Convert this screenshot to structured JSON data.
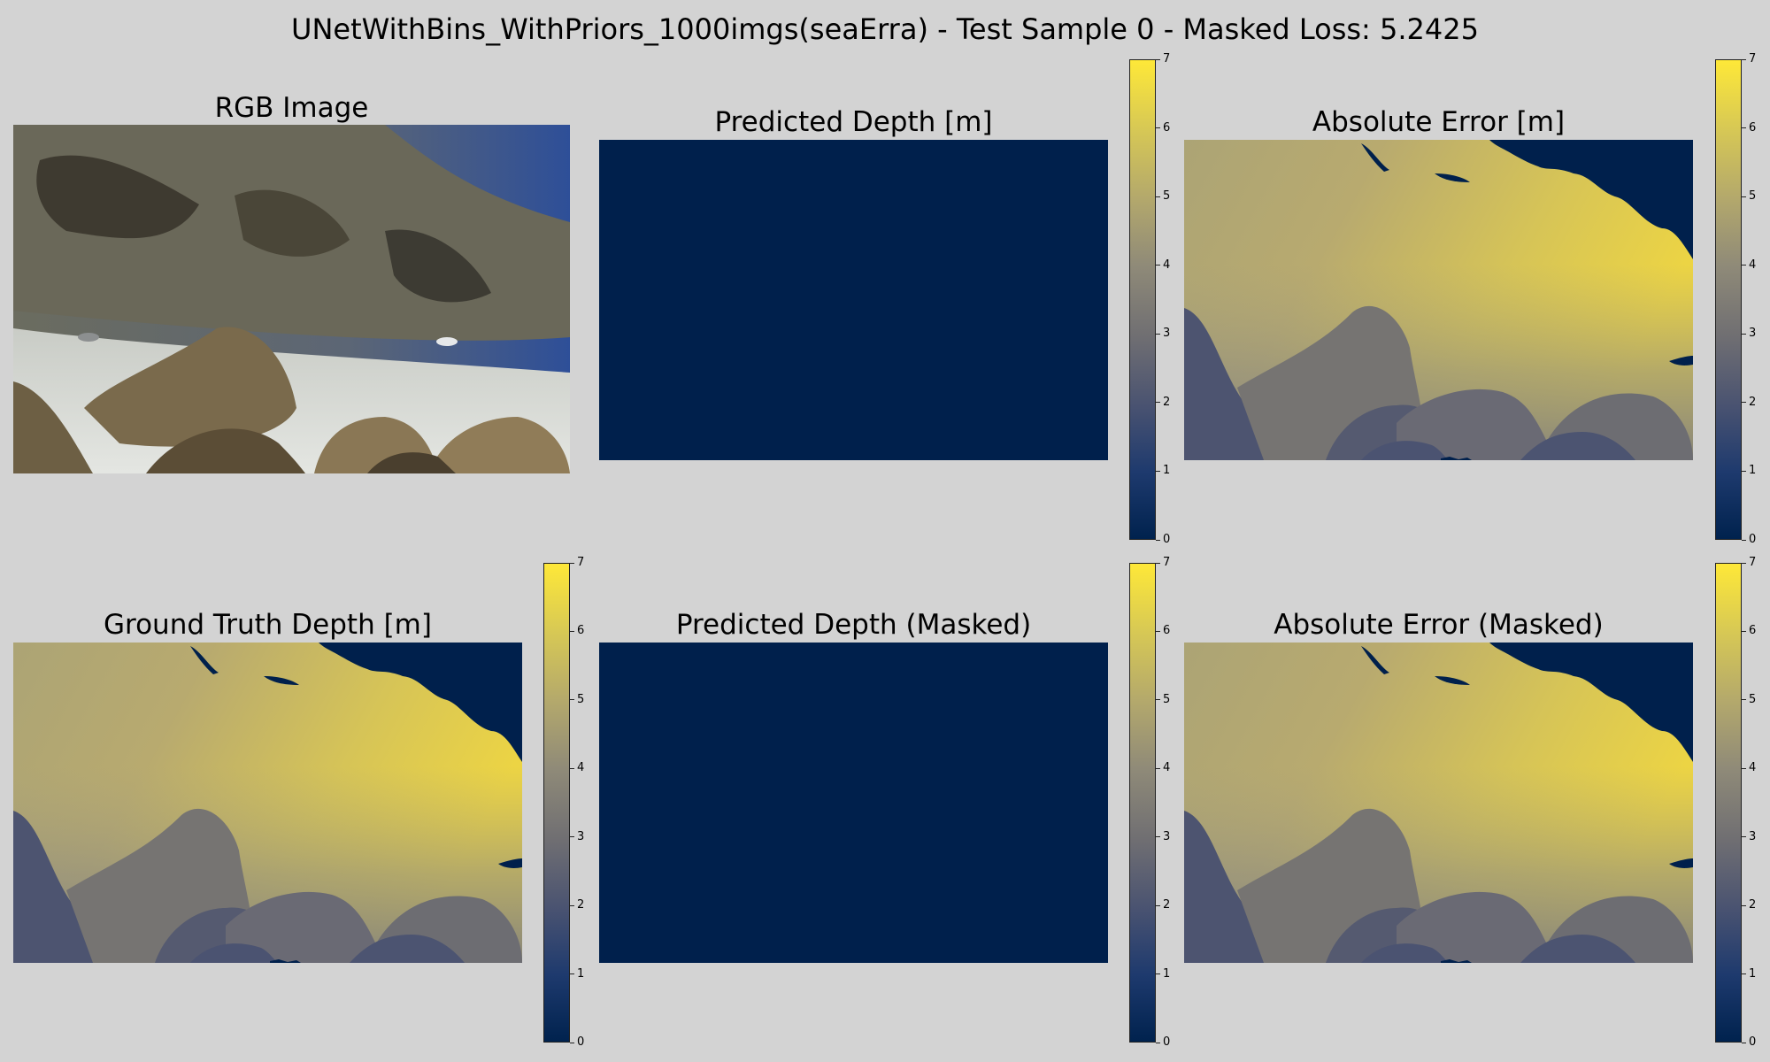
{
  "figure": {
    "title": "UNetWithBins_WithPriors_1000imgs(seaErra) - Test Sample 0 - Masked Loss: 5.2425"
  },
  "panels": {
    "rgb": {
      "title": "RGB Image"
    },
    "pred": {
      "title": "Predicted Depth [m]"
    },
    "err": {
      "title": "Absolute Error [m]"
    },
    "gt": {
      "title": "Ground Truth Depth [m]"
    },
    "pred_masked": {
      "title": "Predicted Depth (Masked)"
    },
    "err_masked": {
      "title": "Absolute Error (Masked)"
    }
  },
  "colorbar": {
    "colormap": "cividis",
    "min": 0,
    "max": 7,
    "ticks": [
      "0",
      "1",
      "2",
      "3",
      "4",
      "5",
      "6",
      "7"
    ]
  },
  "colors": {
    "background": "#d3d3d3",
    "zero_depth": "#00204c"
  }
}
